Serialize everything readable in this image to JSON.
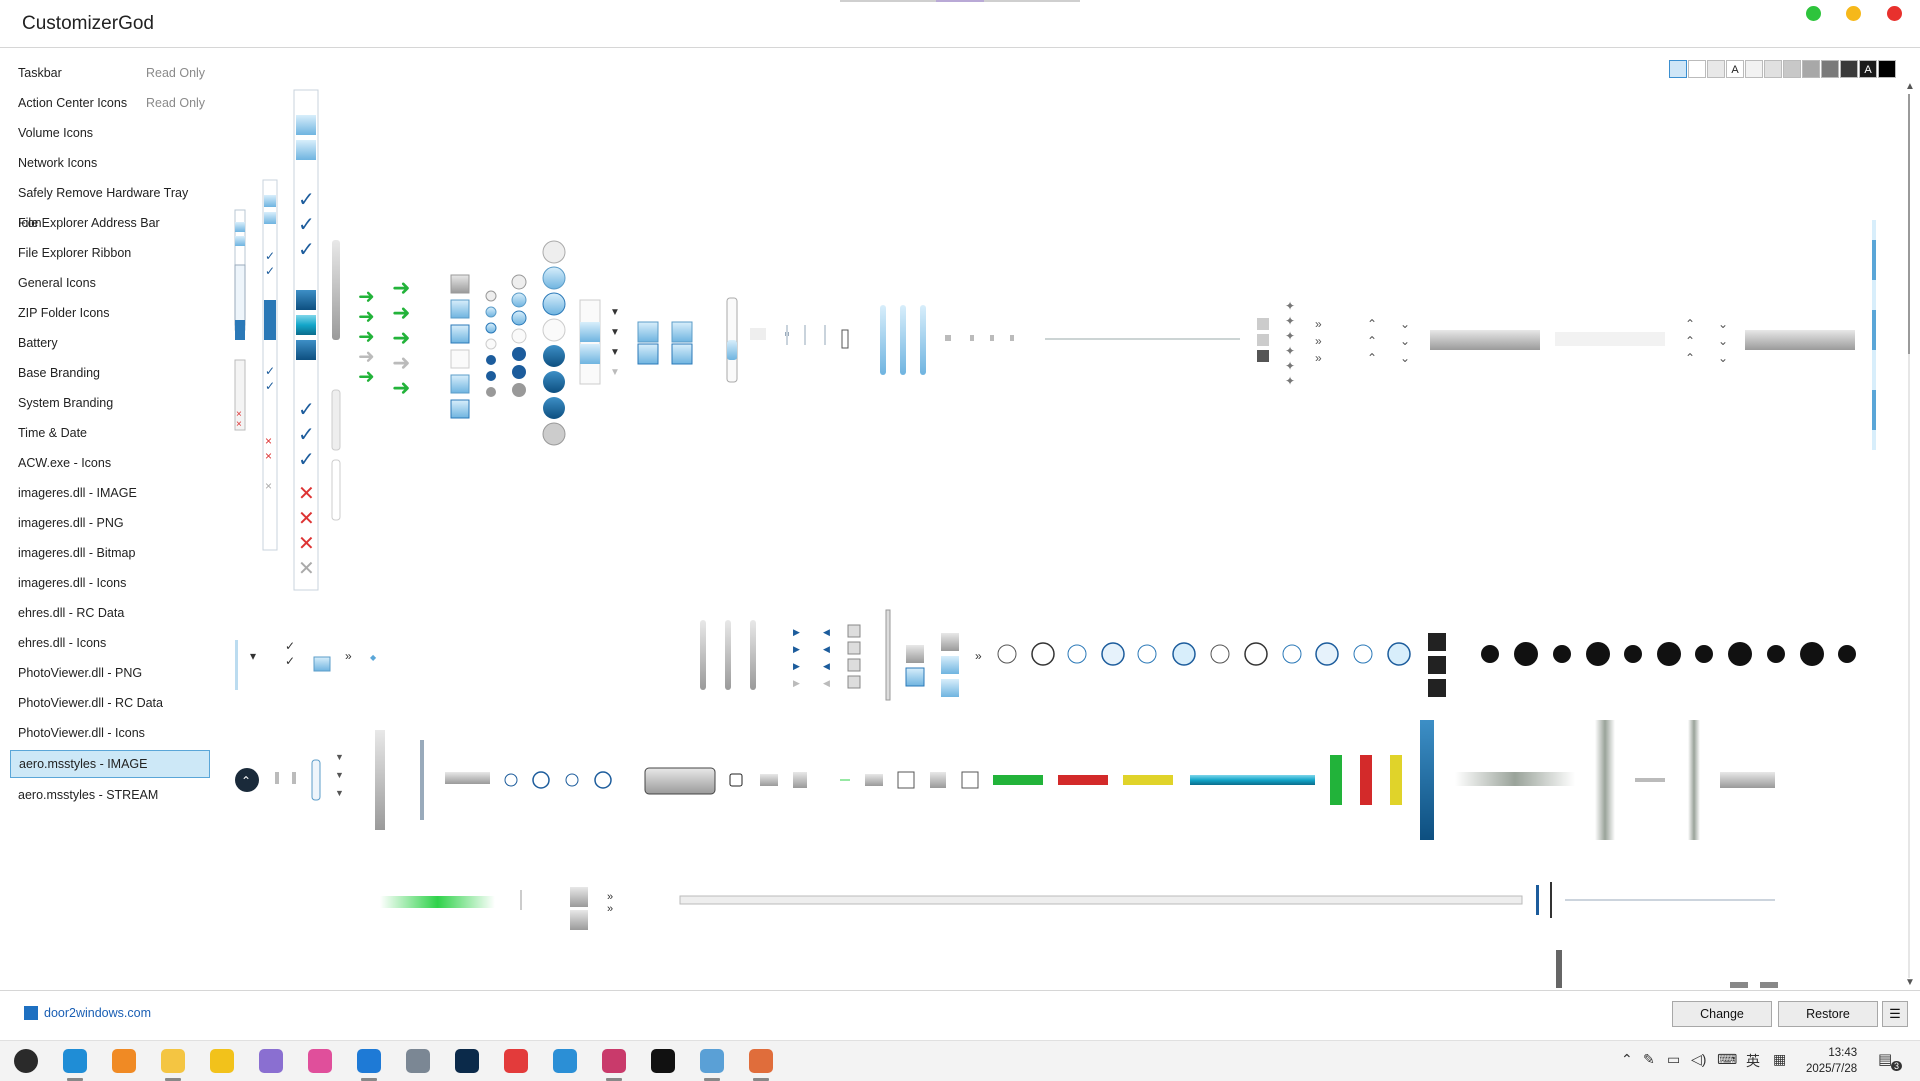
{
  "app": {
    "title": "CustomizerGod"
  },
  "window_controls": [
    {
      "name": "green-dot",
      "color": "#2ec43c"
    },
    {
      "name": "yellow-dot",
      "color": "#f6b81a"
    },
    {
      "name": "red-dot",
      "color": "#e8312d"
    }
  ],
  "sidebar": {
    "items": [
      {
        "label": "Taskbar",
        "note": "Read Only"
      },
      {
        "label": "Action Center Icons",
        "note": "Read Only"
      },
      {
        "label": "Volume Icons",
        "note": ""
      },
      {
        "label": "Network Icons",
        "note": ""
      },
      {
        "label": "Safely Remove Hardware Tray Icon",
        "note": ""
      },
      {
        "label": "File Explorer Address Bar",
        "note": ""
      },
      {
        "label": "File Explorer Ribbon",
        "note": ""
      },
      {
        "label": "General Icons",
        "note": ""
      },
      {
        "label": "ZIP Folder Icons",
        "note": ""
      },
      {
        "label": "Battery",
        "note": ""
      },
      {
        "label": "Base Branding",
        "note": ""
      },
      {
        "label": "System Branding",
        "note": ""
      },
      {
        "label": "Time & Date",
        "note": ""
      },
      {
        "label": "ACW.exe - Icons",
        "note": ""
      },
      {
        "label": "imageres.dll - IMAGE",
        "note": ""
      },
      {
        "label": "imageres.dll - PNG",
        "note": ""
      },
      {
        "label": "imageres.dll - Bitmap",
        "note": ""
      },
      {
        "label": "imageres.dll - Icons",
        "note": ""
      },
      {
        "label": "ehres.dll - RC Data",
        "note": ""
      },
      {
        "label": "ehres.dll - Icons",
        "note": ""
      },
      {
        "label": "PhotoViewer.dll - PNG",
        "note": ""
      },
      {
        "label": "PhotoViewer.dll - RC Data",
        "note": ""
      },
      {
        "label": "PhotoViewer.dll - Icons",
        "note": ""
      },
      {
        "label": "aero.msstyles - IMAGE",
        "note": "",
        "selected": true
      },
      {
        "label": "aero.msstyles - STREAM",
        "note": ""
      }
    ]
  },
  "swatches": [
    {
      "color": "#cfe6f7",
      "text": ""
    },
    {
      "color": "#ffffff",
      "text": ""
    },
    {
      "color": "#e8e8e8",
      "text": ""
    },
    {
      "color": "#ffffff",
      "text": "A"
    },
    {
      "color": "#f2f2f2",
      "text": ""
    },
    {
      "color": "#e0e0e0",
      "text": ""
    },
    {
      "color": "#c8c8c8",
      "text": ""
    },
    {
      "color": "#a8a8a8",
      "text": ""
    },
    {
      "color": "#7a7a7a",
      "text": ""
    },
    {
      "color": "#3a3a3a",
      "text": ""
    },
    {
      "color": "#1a1a1a",
      "text": "A"
    },
    {
      "color": "#000000",
      "text": ""
    }
  ],
  "footer": {
    "brand_link": "door2windows.com",
    "change_label": "Change",
    "restore_label": "Restore",
    "menu_icon": "☰"
  },
  "taskbar": {
    "time": "13:43",
    "date": "2025/7/28",
    "ime_label": "英",
    "notification_count": "3",
    "apps": [
      {
        "name": "windows-start-icon",
        "color": "#2a2a2a"
      },
      {
        "name": "edge-icon",
        "color": "#1f8dd6"
      },
      {
        "name": "search-tool-icon",
        "color": "#f08a24"
      },
      {
        "name": "file-explorer-icon",
        "color": "#f4c542"
      },
      {
        "name": "pen-icon",
        "color": "#f2c21b"
      },
      {
        "name": "media-player-icon",
        "color": "#8a6fd1"
      },
      {
        "name": "color-bars-icon",
        "color": "#e04f9b"
      },
      {
        "name": "vscode-icon",
        "color": "#1e7ad6"
      },
      {
        "name": "settings-tool-icon",
        "color": "#7b8794"
      },
      {
        "name": "photoshop-icon",
        "color": "#0b2a4a"
      },
      {
        "name": "music-icon",
        "color": "#e33b3b"
      },
      {
        "name": "window-tool-icon",
        "color": "#2b8fd6"
      },
      {
        "name": "customizer-icon",
        "color": "#c93a6b"
      },
      {
        "name": "capcut-icon",
        "color": "#111111"
      },
      {
        "name": "notepad-icon",
        "color": "#5aa0d6"
      },
      {
        "name": "paint-icon",
        "color": "#e06d3b"
      }
    ]
  }
}
